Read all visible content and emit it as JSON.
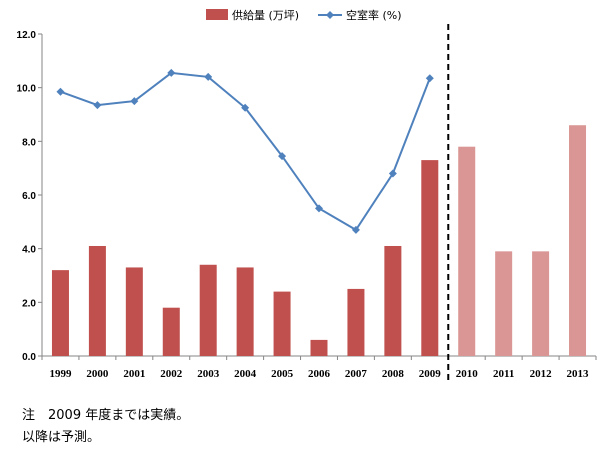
{
  "chart_data": {
    "type": "bar",
    "categories": [
      "1999",
      "2000",
      "2001",
      "2002",
      "2003",
      "2004",
      "2005",
      "2006",
      "2007",
      "2008",
      "2009",
      "2010",
      "2011",
      "2012",
      "2013"
    ],
    "series": [
      {
        "name": "供給量 (万坪)",
        "type": "bar",
        "color": "#c0504d",
        "forecast_color": "#d99694",
        "values": [
          3.2,
          4.1,
          3.3,
          1.8,
          3.4,
          3.3,
          2.4,
          0.6,
          2.5,
          4.1,
          7.3,
          7.8,
          3.9,
          3.9,
          8.6
        ]
      },
      {
        "name": "空室率 (%)",
        "type": "line",
        "color": "#4f81bd",
        "values": [
          9.85,
          9.35,
          9.5,
          10.55,
          10.4,
          9.25,
          7.45,
          5.5,
          4.7,
          6.8,
          10.35,
          null,
          null,
          null,
          null
        ]
      }
    ],
    "actual_through": "2009",
    "ylim": [
      0,
      12
    ],
    "yticks": [
      "0.0",
      "2.0",
      "4.0",
      "6.0",
      "8.0",
      "10.0",
      "12.0"
    ],
    "xlabel": "",
    "ylabel": "",
    "legend": "top-center",
    "grid": false
  },
  "notes": {
    "line1": "注　2009 年度までは実績。",
    "line2": "以降は予測。"
  }
}
